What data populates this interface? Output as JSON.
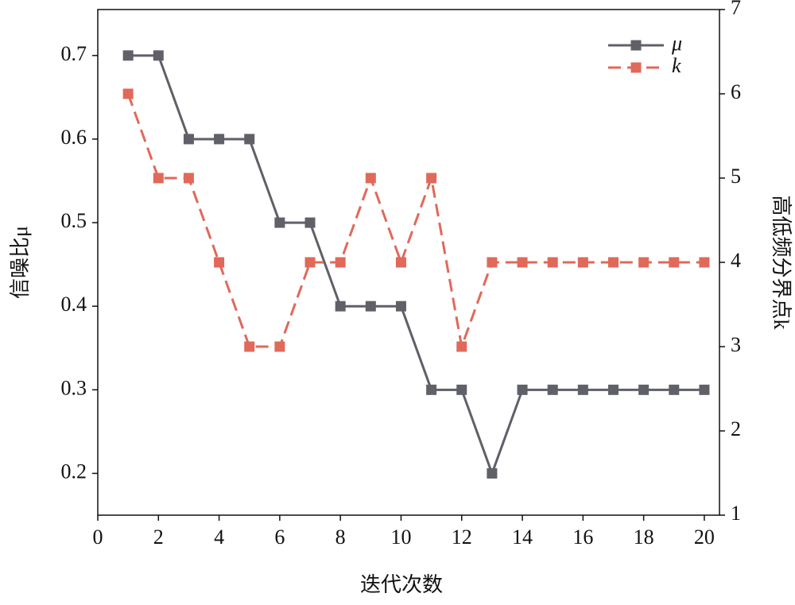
{
  "chart_data": {
    "type": "line",
    "x_label": "迭代次数",
    "y_label": "信噪比μ",
    "y2_label": "高低频分界点k",
    "x": [
      1,
      2,
      3,
      4,
      5,
      6,
      7,
      8,
      9,
      10,
      11,
      12,
      13,
      14,
      15,
      16,
      17,
      18,
      19,
      20
    ],
    "series": [
      {
        "name": "μ",
        "color": "#5f6068",
        "dash": false,
        "values": [
          0.7,
          0.7,
          0.6,
          0.6,
          0.6,
          0.5,
          0.5,
          0.4,
          0.4,
          0.4,
          0.3,
          0.3,
          0.2,
          0.3,
          0.3,
          0.3,
          0.3,
          0.3,
          0.3,
          0.3
        ]
      },
      {
        "name": "k",
        "color": "#e0695a",
        "dash": true,
        "axis": "y2",
        "values": [
          6,
          5,
          5,
          4,
          3,
          3,
          4,
          4,
          5,
          4,
          5,
          3,
          4,
          4,
          4,
          4,
          4,
          4,
          4,
          4
        ]
      }
    ],
    "xlim": [
      0,
      20.5
    ],
    "xticks": [
      0,
      2,
      4,
      6,
      8,
      10,
      12,
      14,
      16,
      18,
      20
    ],
    "ylim": [
      0.15,
      0.755
    ],
    "yticks": [
      0.2,
      0.3,
      0.4,
      0.5,
      0.6,
      0.7
    ],
    "y2lim": [
      1,
      7
    ],
    "y2ticks": [
      1,
      2,
      3,
      4,
      5,
      6,
      7
    ],
    "legend": "upper right"
  }
}
